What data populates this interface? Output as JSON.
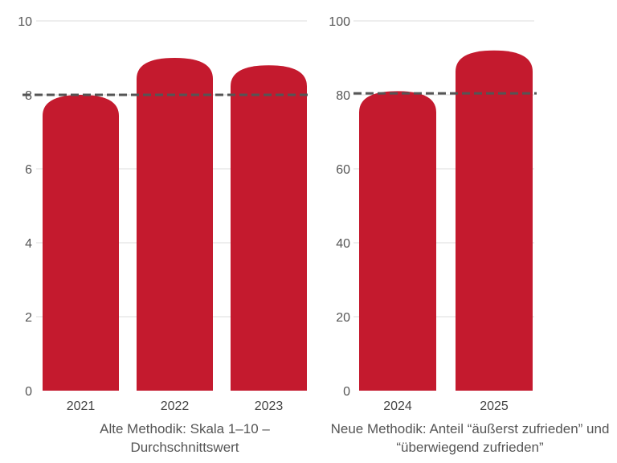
{
  "chart_data": [
    {
      "type": "bar",
      "title": "Alte Methodik: Skala 1–10 – Durchschnittswert",
      "categories": [
        "2021",
        "2022",
        "2023"
      ],
      "values": [
        8.0,
        9.0,
        8.8
      ],
      "reference_line": 8.0,
      "ylim": [
        0,
        10
      ],
      "yticks": [
        0,
        2,
        4,
        6,
        8,
        10
      ],
      "grid": true,
      "bar_color": "#C41A2E"
    },
    {
      "type": "bar",
      "title": "Neue Methodik: Anteil “äußerst zufrieden” und “überwiegend zufrieden”",
      "categories": [
        "2024",
        "2025"
      ],
      "values": [
        81,
        92
      ],
      "reference_line": 80.4,
      "ylim": [
        0,
        100
      ],
      "yticks": [
        0,
        20,
        40,
        60,
        80,
        100
      ],
      "grid": true,
      "bar_color": "#C41A2E"
    }
  ]
}
